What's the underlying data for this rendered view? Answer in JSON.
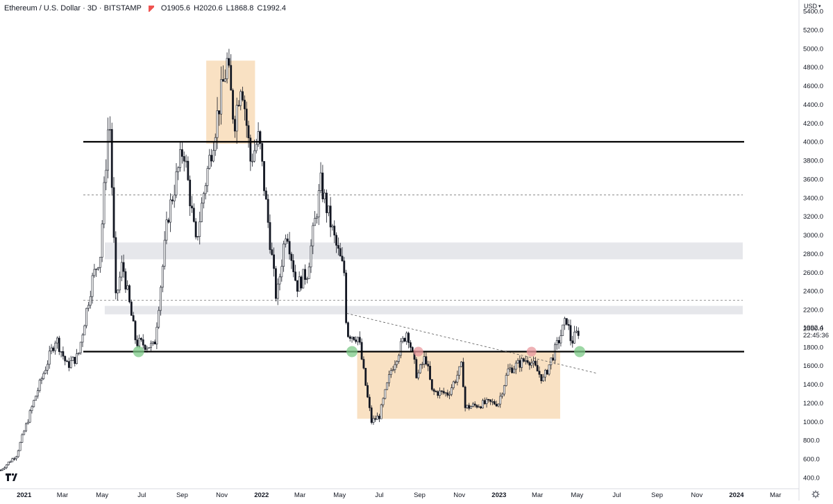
{
  "header": {
    "symbol": "Ethereum / U.S. Dollar · 3D · BITSTAMP",
    "open": "O1905.6",
    "high": "H2020.6",
    "low": "L1868.8",
    "close": "C1992.4"
  },
  "price_scale": {
    "currency": "USD",
    "last_price": "1992.4",
    "countdown": "22:45:36"
  },
  "colors": {
    "candle": "#131722",
    "range_box": "#f9e1c3",
    "zone": "#e6e7eb",
    "level_line": "#000000",
    "dashed_line": "#777777",
    "green_marker": "#7cc987",
    "red_marker": "#e8979c"
  },
  "chart_data": {
    "type": "candlestick",
    "x_ticks": [
      "2021",
      "Mar",
      "May",
      "Jul",
      "Sep",
      "Nov",
      "2022",
      "Mar",
      "May",
      "Jul",
      "Sep",
      "Nov",
      "2023",
      "Mar",
      "May",
      "Jul",
      "Sep",
      "Nov",
      "2024",
      "Mar"
    ],
    "x_range": [
      "2020-11-25",
      "2024-04-05"
    ],
    "y_ticks": [
      400,
      600,
      800,
      1000,
      1200,
      1400,
      1600,
      1800,
      2000,
      2200,
      2400,
      2600,
      2800,
      3000,
      3200,
      3400,
      3600,
      3800,
      4000,
      4200,
      4400,
      4600,
      4800,
      5000,
      5200,
      5400
    ],
    "y_range": [
      280,
      5520
    ],
    "price_path": [
      {
        "date": "2020-11-26",
        "price": 480
      },
      {
        "date": "2020-12-20",
        "price": 640
      },
      {
        "date": "2021-01-20",
        "price": 1300
      },
      {
        "date": "2021-02-19",
        "price": 1900
      },
      {
        "date": "2021-03-08",
        "price": 1600
      },
      {
        "date": "2021-03-25",
        "price": 1700
      },
      {
        "date": "2021-04-15",
        "price": 2500
      },
      {
        "date": "2021-04-28",
        "price": 2800
      },
      {
        "date": "2021-05-12",
        "price": 4350
      },
      {
        "date": "2021-05-22",
        "price": 2300
      },
      {
        "date": "2021-06-01",
        "price": 2700
      },
      {
        "date": "2021-06-22",
        "price": 1850
      },
      {
        "date": "2021-07-20",
        "price": 1800
      },
      {
        "date": "2021-08-10",
        "price": 3200
      },
      {
        "date": "2021-09-03",
        "price": 3950
      },
      {
        "date": "2021-09-22",
        "price": 2900
      },
      {
        "date": "2021-10-05",
        "price": 3500
      },
      {
        "date": "2021-10-28",
        "price": 4400
      },
      {
        "date": "2021-11-09",
        "price": 4850
      },
      {
        "date": "2021-11-20",
        "price": 4200
      },
      {
        "date": "2021-12-01",
        "price": 4700
      },
      {
        "date": "2021-12-15",
        "price": 3800
      },
      {
        "date": "2021-12-28",
        "price": 4050
      },
      {
        "date": "2022-01-10",
        "price": 3200
      },
      {
        "date": "2022-01-24",
        "price": 2300
      },
      {
        "date": "2022-02-08",
        "price": 3100
      },
      {
        "date": "2022-02-24",
        "price": 2450
      },
      {
        "date": "2022-03-12",
        "price": 2600
      },
      {
        "date": "2022-04-02",
        "price": 3550
      },
      {
        "date": "2022-04-25",
        "price": 2900
      },
      {
        "date": "2022-05-08",
        "price": 2600
      },
      {
        "date": "2022-05-12",
        "price": 1950
      },
      {
        "date": "2022-05-30",
        "price": 1900
      },
      {
        "date": "2022-06-13",
        "price": 1250
      },
      {
        "date": "2022-06-19",
        "price": 1000
      },
      {
        "date": "2022-07-01",
        "price": 1060
      },
      {
        "date": "2022-07-19",
        "price": 1550
      },
      {
        "date": "2022-08-13",
        "price": 1980
      },
      {
        "date": "2022-08-28",
        "price": 1480
      },
      {
        "date": "2022-09-10",
        "price": 1700
      },
      {
        "date": "2022-09-20",
        "price": 1320
      },
      {
        "date": "2022-10-15",
        "price": 1300
      },
      {
        "date": "2022-11-05",
        "price": 1600
      },
      {
        "date": "2022-11-10",
        "price": 1150
      },
      {
        "date": "2022-12-15",
        "price": 1200
      },
      {
        "date": "2022-12-31",
        "price": 1200
      },
      {
        "date": "2023-01-15",
        "price": 1550
      },
      {
        "date": "2023-02-15",
        "price": 1680
      },
      {
        "date": "2023-03-10",
        "price": 1450
      },
      {
        "date": "2023-03-30",
        "price": 1800
      },
      {
        "date": "2023-04-15",
        "price": 2100
      },
      {
        "date": "2023-04-22",
        "price": 1850
      },
      {
        "date": "2023-05-05",
        "price": 1992
      }
    ],
    "annotations": {
      "horizontal_levels": [
        4000,
        1750
      ],
      "dashed_levels": [
        3430,
        2300
      ],
      "zones": [
        {
          "low": 2740,
          "high": 2920
        },
        {
          "low": 2150,
          "high": 2240
        }
      ],
      "range_boxes": [
        {
          "start": "2021-10-08",
          "end": "2021-12-22",
          "low": 3980,
          "high": 4870
        },
        {
          "start": "2022-05-28",
          "end": "2023-04-05",
          "low": 1030,
          "high": 1750
        }
      ],
      "trendline": [
        {
          "date": "2022-05-12",
          "price": 2160
        },
        {
          "date": "2023-05-30",
          "price": 1520
        }
      ],
      "green_markers": [
        {
          "date": "2021-06-26",
          "price": 1750
        },
        {
          "date": "2022-05-20",
          "price": 1750
        },
        {
          "date": "2023-05-05",
          "price": 1750
        }
      ],
      "red_markers": [
        {
          "date": "2022-08-30",
          "price": 1750
        },
        {
          "date": "2023-02-20",
          "price": 1750
        }
      ]
    }
  }
}
